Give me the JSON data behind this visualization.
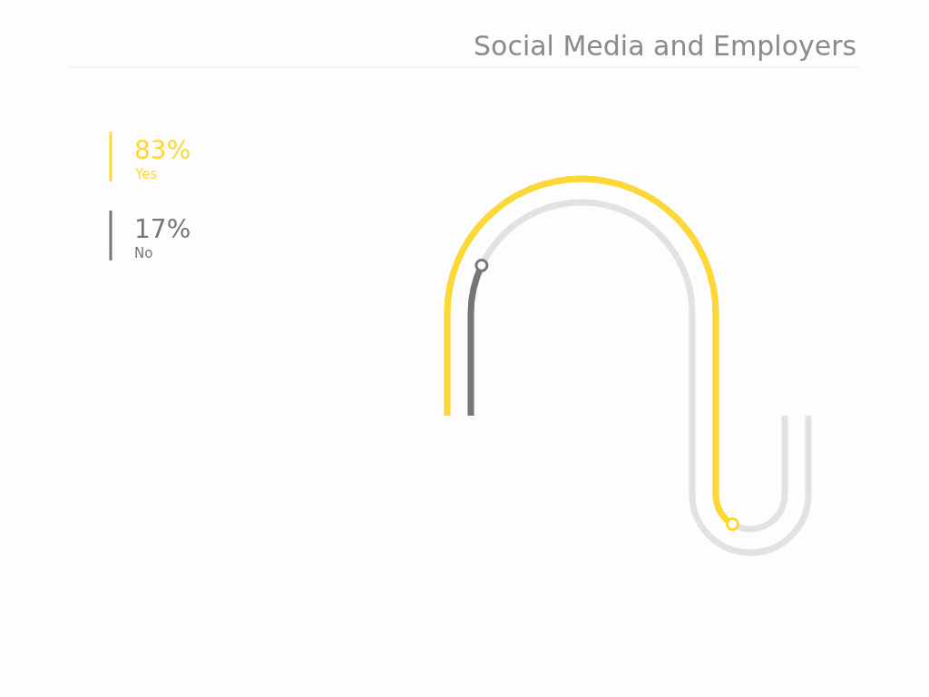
{
  "chart_data": {
    "type": "other",
    "title": "Social Media and Employers",
    "categories": [
      "Yes",
      "No"
    ],
    "values": [
      83,
      17
    ],
    "value_labels": [
      "83%",
      "17%"
    ],
    "colors": [
      "#fdd835",
      "#767676"
    ]
  }
}
